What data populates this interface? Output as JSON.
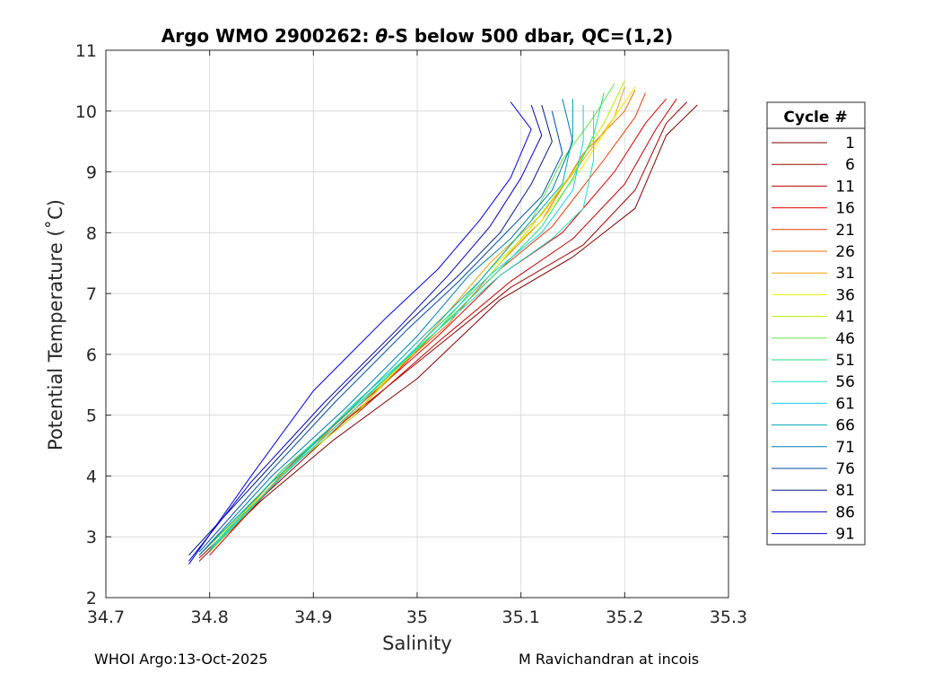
{
  "chart_data": {
    "type": "line",
    "title_prefix": "Argo WMO 2900262: ",
    "title_theta": "θ",
    "title_suffix": "-S below 500 dbar,  QC=(1,2)",
    "xlabel": "Salinity",
    "ylabel": "Potential Temperature (˚C)",
    "xlim": [
      34.7,
      35.3
    ],
    "ylim": [
      2,
      11
    ],
    "xticks": [
      34.7,
      34.8,
      34.9,
      35,
      35.1,
      35.2,
      35.3
    ],
    "xtick_labels": [
      "34.7",
      "34.8",
      "34.9",
      "35",
      "35.1",
      "35.2",
      "35.3"
    ],
    "yticks": [
      2,
      3,
      4,
      5,
      6,
      7,
      8,
      9,
      10,
      11
    ],
    "ytick_labels": [
      "2",
      "3",
      "4",
      "5",
      "6",
      "7",
      "8",
      "9",
      "10",
      "11"
    ],
    "grid": true,
    "legend": {
      "title": "Cycle #",
      "placement": "outside-right",
      "entries": [
        "1",
        "6",
        "11",
        "16",
        "21",
        "26",
        "31",
        "36",
        "41",
        "46",
        "51",
        "56",
        "61",
        "66",
        "71",
        "76",
        "81",
        "86",
        "91"
      ]
    },
    "series": [
      {
        "name": "1",
        "color": "#7f0000",
        "values": [
          [
            34.79,
            2.6
          ],
          [
            34.85,
            3.6
          ],
          [
            34.92,
            4.6
          ],
          [
            35.0,
            5.6
          ],
          [
            35.08,
            6.9
          ],
          [
            35.15,
            7.6
          ],
          [
            35.21,
            8.4
          ],
          [
            35.24,
            9.6
          ],
          [
            35.27,
            10.1
          ]
        ]
      },
      {
        "name": "6",
        "color": "#a00000",
        "values": [
          [
            34.79,
            2.65
          ],
          [
            34.86,
            3.8
          ],
          [
            34.93,
            4.9
          ],
          [
            35.01,
            6.0
          ],
          [
            35.09,
            7.1
          ],
          [
            35.16,
            7.8
          ],
          [
            35.21,
            8.7
          ],
          [
            35.24,
            9.8
          ],
          [
            35.26,
            10.15
          ]
        ]
      },
      {
        "name": "11",
        "color": "#c00000",
        "values": [
          [
            34.79,
            2.7
          ],
          [
            34.86,
            3.9
          ],
          [
            34.94,
            5.0
          ],
          [
            35.02,
            6.2
          ],
          [
            35.09,
            7.2
          ],
          [
            35.15,
            7.9
          ],
          [
            35.2,
            8.8
          ],
          [
            35.23,
            9.7
          ],
          [
            35.25,
            10.2
          ]
        ]
      },
      {
        "name": "16",
        "color": "#e00000",
        "values": [
          [
            34.8,
            2.7
          ],
          [
            34.87,
            4.0
          ],
          [
            34.94,
            5.1
          ],
          [
            35.02,
            6.3
          ],
          [
            35.08,
            7.3
          ],
          [
            35.14,
            8.0
          ],
          [
            35.19,
            9.0
          ],
          [
            35.22,
            9.8
          ],
          [
            35.24,
            10.2
          ]
        ]
      },
      {
        "name": "21",
        "color": "#e83a00",
        "values": [
          [
            34.8,
            2.75
          ],
          [
            34.87,
            4.1
          ],
          [
            34.95,
            5.2
          ],
          [
            35.02,
            6.4
          ],
          [
            35.08,
            7.4
          ],
          [
            35.13,
            8.1
          ],
          [
            35.18,
            9.2
          ],
          [
            35.21,
            9.9
          ],
          [
            35.22,
            10.3
          ]
        ]
      },
      {
        "name": "26",
        "color": "#ef7000",
        "values": [
          [
            34.8,
            2.8
          ],
          [
            34.88,
            4.2
          ],
          [
            34.95,
            5.3
          ],
          [
            35.03,
            6.5
          ],
          [
            35.08,
            7.5
          ],
          [
            35.12,
            8.2
          ],
          [
            35.16,
            9.3
          ],
          [
            35.2,
            10.0
          ],
          [
            35.21,
            10.35
          ]
        ]
      },
      {
        "name": "31",
        "color": "#f0a000",
        "values": [
          [
            34.8,
            2.75
          ],
          [
            34.87,
            4.1
          ],
          [
            34.95,
            5.2
          ],
          [
            35.02,
            6.5
          ],
          [
            35.07,
            7.5
          ],
          [
            35.12,
            8.3
          ],
          [
            35.16,
            9.2
          ],
          [
            35.19,
            9.9
          ],
          [
            35.2,
            10.4
          ]
        ]
      },
      {
        "name": "36",
        "color": "#eeee00",
        "values": [
          [
            34.79,
            2.7
          ],
          [
            34.87,
            4.0
          ],
          [
            34.94,
            5.1
          ],
          [
            35.02,
            6.4
          ],
          [
            35.07,
            7.4
          ],
          [
            35.12,
            8.2
          ],
          [
            35.16,
            9.1
          ],
          [
            35.19,
            9.9
          ],
          [
            35.21,
            10.4
          ]
        ]
      },
      {
        "name": "41",
        "color": "#b4f000",
        "values": [
          [
            34.79,
            2.7
          ],
          [
            34.86,
            3.9
          ],
          [
            34.94,
            5.0
          ],
          [
            35.01,
            6.3
          ],
          [
            35.07,
            7.3
          ],
          [
            35.11,
            8.1
          ],
          [
            35.15,
            9.0
          ],
          [
            35.18,
            9.8
          ],
          [
            35.2,
            10.5
          ]
        ]
      },
      {
        "name": "46",
        "color": "#60e840",
        "values": [
          [
            34.8,
            2.75
          ],
          [
            34.87,
            4.0
          ],
          [
            34.94,
            5.2
          ],
          [
            35.02,
            6.4
          ],
          [
            35.07,
            7.4
          ],
          [
            35.11,
            8.2
          ],
          [
            35.14,
            9.2
          ],
          [
            35.17,
            9.9
          ],
          [
            35.19,
            10.45
          ]
        ]
      },
      {
        "name": "51",
        "color": "#20e080",
        "values": [
          [
            34.8,
            2.8
          ],
          [
            34.87,
            4.1
          ],
          [
            34.95,
            5.3
          ],
          [
            35.02,
            6.4
          ],
          [
            35.08,
            7.4
          ],
          [
            35.12,
            8.1
          ],
          [
            35.15,
            8.9
          ],
          [
            35.17,
            9.6
          ],
          [
            35.18,
            10.3
          ]
        ]
      },
      {
        "name": "56",
        "color": "#20e0c0",
        "values": [
          [
            34.8,
            2.8
          ],
          [
            34.87,
            4.0
          ],
          [
            34.94,
            5.2
          ],
          [
            35.02,
            6.4
          ],
          [
            35.08,
            7.3
          ],
          [
            35.13,
            7.9
          ],
          [
            35.16,
            8.4
          ],
          [
            35.17,
            9.2
          ],
          [
            35.17,
            10.0
          ]
        ]
      },
      {
        "name": "61",
        "color": "#10d0e8",
        "values": [
          [
            34.8,
            2.78
          ],
          [
            34.87,
            4.0
          ],
          [
            34.94,
            5.1
          ],
          [
            35.01,
            6.3
          ],
          [
            35.07,
            7.3
          ],
          [
            35.12,
            8.0
          ],
          [
            35.15,
            8.7
          ],
          [
            35.16,
            9.5
          ],
          [
            35.16,
            10.1
          ]
        ]
      },
      {
        "name": "66",
        "color": "#00a8b0",
        "values": [
          [
            34.79,
            2.7
          ],
          [
            34.86,
            3.9
          ],
          [
            34.93,
            5.0
          ],
          [
            35.0,
            6.2
          ],
          [
            35.06,
            7.2
          ],
          [
            35.1,
            8.0
          ],
          [
            35.14,
            8.8
          ],
          [
            35.15,
            9.6
          ],
          [
            35.15,
            10.2
          ]
        ]
      },
      {
        "name": "71",
        "color": "#0078b0",
        "values": [
          [
            34.79,
            2.7
          ],
          [
            34.86,
            4.0
          ],
          [
            34.93,
            5.1
          ],
          [
            35.0,
            6.3
          ],
          [
            35.05,
            7.3
          ],
          [
            35.09,
            7.9
          ],
          [
            35.13,
            8.7
          ],
          [
            35.15,
            9.5
          ],
          [
            35.14,
            10.2
          ]
        ]
      },
      {
        "name": "76",
        "color": "#004aa0",
        "values": [
          [
            34.79,
            2.75
          ],
          [
            34.86,
            4.1
          ],
          [
            34.92,
            5.2
          ],
          [
            34.99,
            6.4
          ],
          [
            35.04,
            7.2
          ],
          [
            35.08,
            7.9
          ],
          [
            35.12,
            8.6
          ],
          [
            35.14,
            9.3
          ],
          [
            35.13,
            10.0
          ]
        ]
      },
      {
        "name": "81",
        "color": "#001a80",
        "values": [
          [
            34.78,
            2.7
          ],
          [
            34.85,
            4.0
          ],
          [
            34.92,
            5.3
          ],
          [
            34.99,
            6.5
          ],
          [
            35.04,
            7.3
          ],
          [
            35.08,
            8.0
          ],
          [
            35.11,
            8.8
          ],
          [
            35.13,
            9.5
          ],
          [
            35.12,
            10.1
          ]
        ]
      },
      {
        "name": "86",
        "color": "#0000c0",
        "values": [
          [
            34.78,
            2.6
          ],
          [
            34.84,
            3.9
          ],
          [
            34.91,
            5.2
          ],
          [
            34.98,
            6.4
          ],
          [
            35.03,
            7.3
          ],
          [
            35.07,
            8.1
          ],
          [
            35.1,
            8.9
          ],
          [
            35.12,
            9.6
          ],
          [
            35.11,
            10.1
          ]
        ]
      },
      {
        "name": "91",
        "color": "#0000e0",
        "values": [
          [
            34.78,
            2.55
          ],
          [
            34.84,
            4.0
          ],
          [
            34.9,
            5.4
          ],
          [
            34.97,
            6.6
          ],
          [
            35.02,
            7.4
          ],
          [
            35.06,
            8.2
          ],
          [
            35.09,
            8.9
          ],
          [
            35.11,
            9.7
          ],
          [
            35.09,
            10.15
          ]
        ]
      }
    ]
  },
  "footer": {
    "left": "WHOI Argo:13-Oct-2025",
    "right": "M Ravichandran at incois"
  }
}
